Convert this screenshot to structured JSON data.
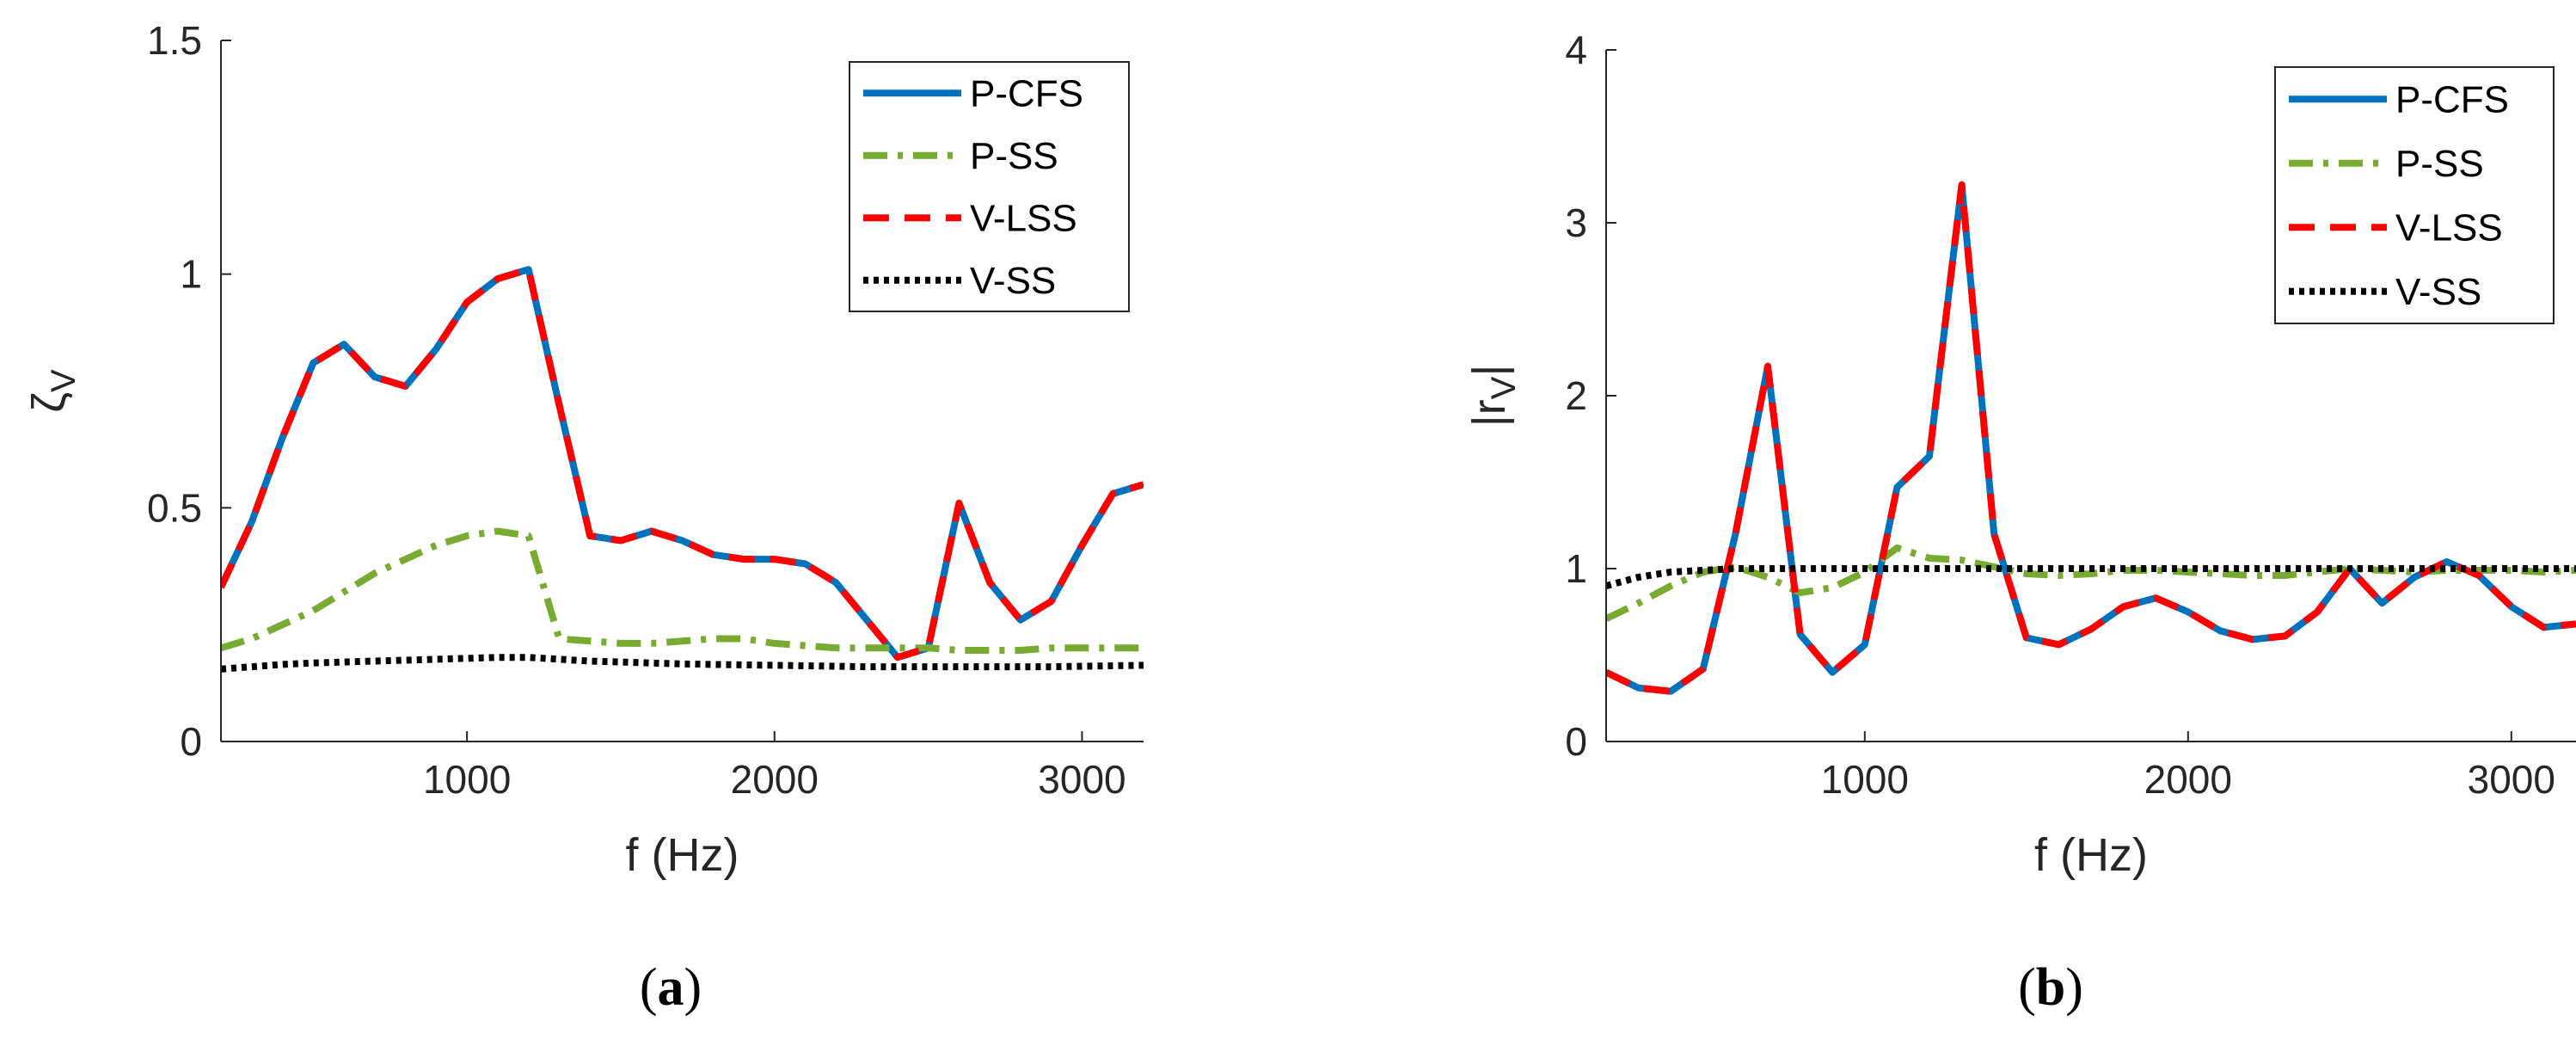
{
  "chart_data": [
    {
      "type": "line",
      "panel_label": "a",
      "xlabel": "f (Hz)",
      "ylabel_symbol": "ζ",
      "ylabel_subscript": "V",
      "xlim": [
        200,
        3200
      ],
      "ylim": [
        0,
        1.5
      ],
      "xticks": [
        1000,
        2000,
        3000
      ],
      "yticks": [
        0,
        0.5,
        1,
        1.5
      ],
      "ytick_labels": [
        "0",
        "0.5",
        "1",
        "1.5"
      ],
      "legend_position": "top-right",
      "x": [
        200,
        300,
        400,
        500,
        600,
        700,
        800,
        900,
        1000,
        1100,
        1200,
        1300,
        1400,
        1500,
        1600,
        1700,
        1800,
        1900,
        2000,
        2100,
        2200,
        2300,
        2400,
        2500,
        2600,
        2700,
        2800,
        2900,
        3000,
        3100,
        3200
      ],
      "series": [
        {
          "name": "P-CFS",
          "style": "solid",
          "color": "#0072BD",
          "values": [
            0.33,
            0.47,
            0.65,
            0.81,
            0.85,
            0.78,
            0.76,
            0.84,
            0.94,
            0.99,
            1.01,
            0.72,
            0.44,
            0.43,
            0.45,
            0.43,
            0.4,
            0.39,
            0.39,
            0.38,
            0.34,
            0.26,
            0.18,
            0.2,
            0.51,
            0.34,
            0.26,
            0.3,
            0.42,
            0.53,
            0.55
          ]
        },
        {
          "name": "P-SS",
          "style": "dashdot",
          "color": "#77AC30",
          "values": [
            0.2,
            0.22,
            0.25,
            0.28,
            0.32,
            0.36,
            0.39,
            0.42,
            0.44,
            0.45,
            0.44,
            0.22,
            0.215,
            0.21,
            0.21,
            0.215,
            0.22,
            0.22,
            0.21,
            0.205,
            0.2,
            0.2,
            0.2,
            0.2,
            0.195,
            0.195,
            0.195,
            0.2,
            0.2,
            0.2,
            0.2
          ]
        },
        {
          "name": "V-LSS",
          "style": "dashed",
          "color": "#FF0000",
          "values": [
            0.33,
            0.47,
            0.65,
            0.81,
            0.85,
            0.78,
            0.76,
            0.84,
            0.94,
            0.99,
            1.01,
            0.72,
            0.44,
            0.43,
            0.45,
            0.43,
            0.4,
            0.39,
            0.39,
            0.38,
            0.34,
            0.26,
            0.18,
            0.2,
            0.51,
            0.34,
            0.26,
            0.3,
            0.42,
            0.53,
            0.55
          ]
        },
        {
          "name": "V-SS",
          "style": "dotted",
          "color": "#000000",
          "values": [
            0.155,
            0.16,
            0.165,
            0.168,
            0.17,
            0.172,
            0.174,
            0.176,
            0.178,
            0.18,
            0.18,
            0.176,
            0.172,
            0.17,
            0.168,
            0.166,
            0.165,
            0.164,
            0.163,
            0.162,
            0.161,
            0.16,
            0.16,
            0.16,
            0.16,
            0.16,
            0.16,
            0.16,
            0.161,
            0.162,
            0.163
          ]
        }
      ]
    },
    {
      "type": "line",
      "panel_label": "b",
      "xlabel": "f (Hz)",
      "ylabel_symbol": "|r",
      "ylabel_subscript": "V",
      "ylabel_suffix": "|",
      "xlim": [
        200,
        3200
      ],
      "ylim": [
        0,
        4
      ],
      "xticks": [
        1000,
        2000,
        3000
      ],
      "yticks": [
        0,
        1,
        2,
        3,
        4
      ],
      "ytick_labels": [
        "0",
        "1",
        "2",
        "3",
        "4"
      ],
      "legend_position": "top-right",
      "x": [
        200,
        300,
        400,
        500,
        600,
        700,
        800,
        900,
        1000,
        1100,
        1200,
        1300,
        1400,
        1500,
        1600,
        1700,
        1800,
        1900,
        2000,
        2100,
        2200,
        2300,
        2400,
        2500,
        2600,
        2700,
        2800,
        2900,
        3000,
        3100,
        3200
      ],
      "series": [
        {
          "name": "P-CFS",
          "style": "solid",
          "color": "#0072BD",
          "values": [
            0.4,
            0.31,
            0.29,
            0.42,
            1.2,
            2.17,
            0.62,
            0.4,
            0.56,
            1.47,
            1.65,
            3.22,
            1.2,
            0.6,
            0.56,
            0.65,
            0.78,
            0.83,
            0.75,
            0.64,
            0.59,
            0.61,
            0.75,
            1.0,
            0.8,
            0.95,
            1.04,
            0.96,
            0.78,
            0.66,
            0.68
          ]
        },
        {
          "name": "P-SS",
          "style": "dashdot",
          "color": "#77AC30",
          "values": [
            0.71,
            0.8,
            0.9,
            0.98,
            1.01,
            0.95,
            0.86,
            0.89,
            0.98,
            1.12,
            1.06,
            1.05,
            1.01,
            0.97,
            0.96,
            0.97,
            0.99,
            0.99,
            0.98,
            0.97,
            0.96,
            0.96,
            0.98,
            1.0,
            0.99,
            0.98,
            0.99,
            0.99,
            0.99,
            0.98,
            0.99
          ]
        },
        {
          "name": "V-LSS",
          "style": "dashed",
          "color": "#FF0000",
          "values": [
            0.4,
            0.31,
            0.29,
            0.42,
            1.2,
            2.17,
            0.62,
            0.4,
            0.56,
            1.47,
            1.65,
            3.22,
            1.2,
            0.6,
            0.56,
            0.65,
            0.78,
            0.83,
            0.75,
            0.64,
            0.59,
            0.61,
            0.75,
            1.0,
            0.8,
            0.95,
            1.04,
            0.96,
            0.78,
            0.66,
            0.68
          ]
        },
        {
          "name": "V-SS",
          "style": "dotted",
          "color": "#000000",
          "values": [
            0.9,
            0.95,
            0.98,
            0.99,
            1.0,
            1.0,
            1.0,
            1.0,
            1.0,
            1.0,
            1.0,
            1.0,
            1.0,
            1.0,
            1.0,
            1.0,
            1.0,
            1.0,
            1.0,
            1.0,
            1.0,
            1.0,
            1.0,
            1.0,
            1.0,
            1.0,
            1.0,
            1.0,
            1.0,
            1.0,
            1.0
          ]
        }
      ]
    }
  ]
}
